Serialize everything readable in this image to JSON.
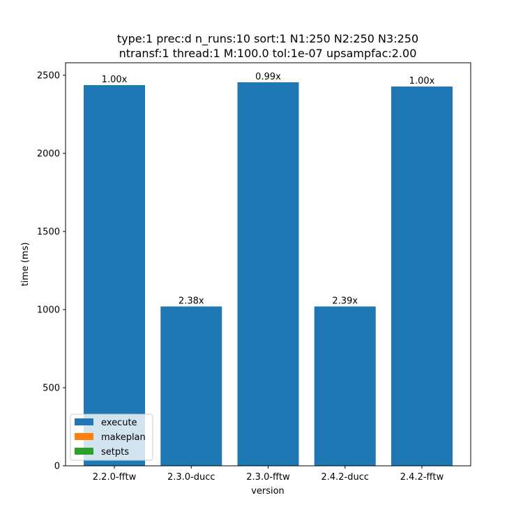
{
  "chart_data": {
    "type": "bar",
    "title_line1": "type:1 prec:d n_runs:10 sort:1 N1:250 N2:250 N3:250",
    "title_line2": "ntransf:1 thread:1 M:100.0 tol:1e-07 upsampfac:2.00",
    "xlabel": "version",
    "ylabel": "time (ms)",
    "categories": [
      "2.2.0-fftw",
      "2.3.0-ducc",
      "2.3.0-fftw",
      "2.4.2-ducc",
      "2.4.2-fftw"
    ],
    "series": [
      {
        "name": "execute",
        "color": "#1f77b4",
        "values": [
          2437,
          1020,
          2455,
          1020,
          2428
        ]
      },
      {
        "name": "makeplan",
        "color": "#ff7f0e",
        "values": [
          0,
          0,
          0,
          0,
          0
        ]
      },
      {
        "name": "setpts",
        "color": "#2ca02c",
        "values": [
          0,
          0,
          0,
          0,
          0
        ]
      }
    ],
    "bar_labels": [
      "1.00x",
      "2.38x",
      "0.99x",
      "2.39x",
      "1.00x"
    ],
    "yticks": [
      0,
      500,
      1000,
      1500,
      2000,
      2500
    ],
    "ylim": [
      0,
      2580
    ],
    "grid": false,
    "legend_position": "lower-left"
  }
}
